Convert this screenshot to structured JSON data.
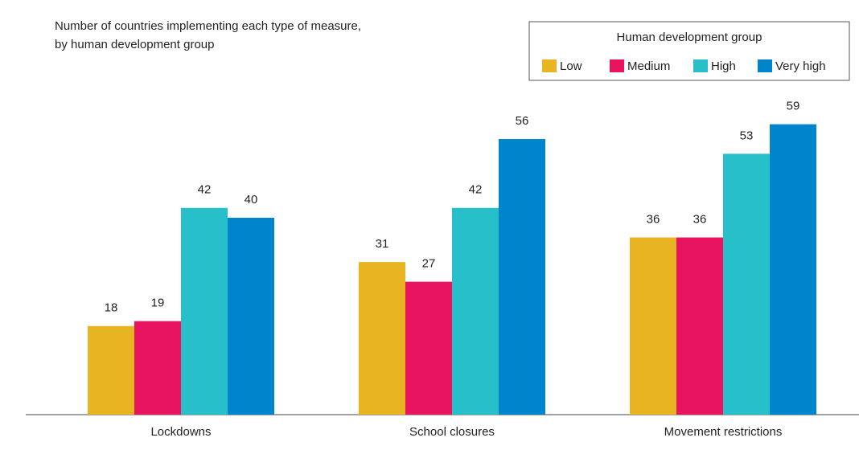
{
  "chart_data": {
    "type": "bar",
    "title": "Number of countries implementing each type of measure,",
    "subtitle": "by human development group",
    "legend_title": "Human development group",
    "categories": [
      "Lockdowns",
      "School closures",
      "Movement restrictions"
    ],
    "series": [
      {
        "name": "Low",
        "color": "#e8b422",
        "values": [
          18,
          31,
          36
        ]
      },
      {
        "name": "Medium",
        "color": "#e8145f",
        "values": [
          19,
          27,
          36
        ]
      },
      {
        "name": "High",
        "color": "#27bfc9",
        "values": [
          42,
          42,
          53
        ]
      },
      {
        "name": "Very high",
        "color": "#0085cc",
        "values": [
          40,
          56,
          59
        ]
      }
    ],
    "ylim": [
      0,
      80
    ]
  }
}
